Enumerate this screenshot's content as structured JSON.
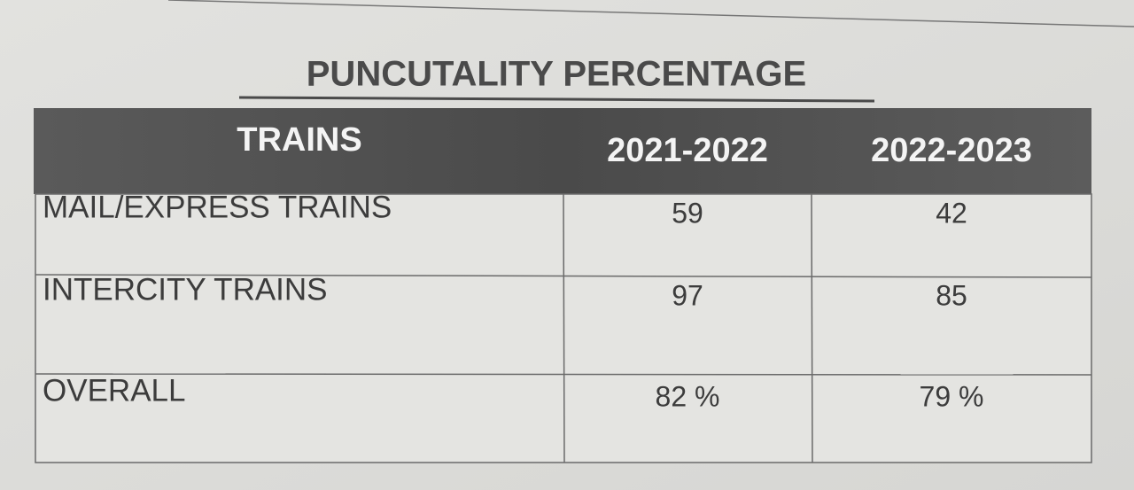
{
  "title": "PUNCUTALITY PERCENTAGE",
  "table": {
    "header": [
      "TRAINS",
      "2021-2022",
      "2022-2023"
    ],
    "rows": [
      [
        "MAIL/EXPRESS TRAINS",
        "59",
        "42"
      ],
      [
        "INTERCITY TRAINS",
        "97",
        "85"
      ],
      [
        "OVERALL",
        "82 %",
        "79 %"
      ]
    ]
  }
}
